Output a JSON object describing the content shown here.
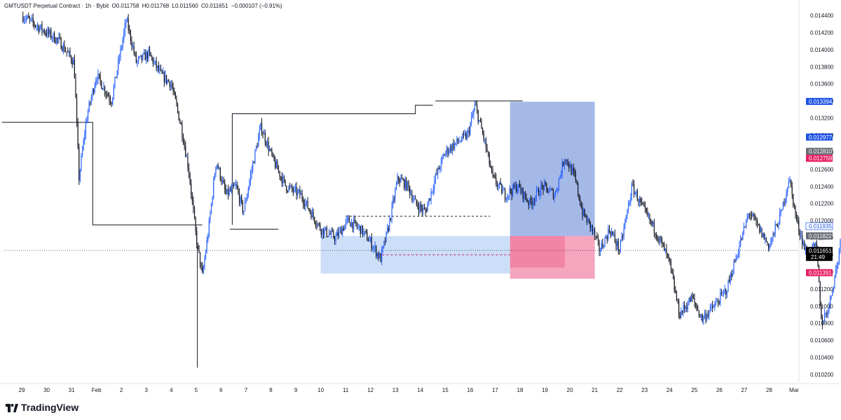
{
  "header": {
    "symbol": "GMTUSDT Perpetual Contract · 1h · Bybit",
    "open": "O0.011758",
    "high": "H0.011768",
    "low": "L0.011560",
    "close": "C0.011651",
    "change": "−0.000107 (−0.91%)"
  },
  "branding": {
    "logo_text": "TradingView"
  },
  "chart_data": {
    "type": "candlestick",
    "symbol": "GMTUSDT Perpetual Contract",
    "exchange": "Bybit",
    "ylim": [
      0.0102,
      0.0144
    ],
    "y_ticks": [
      "0.014400",
      "0.014200",
      "0.014000",
      "0.013800",
      "0.013600",
      "0.013400",
      "0.013200",
      "0.013000",
      "0.012800",
      "0.012600",
      "0.012400",
      "0.012200",
      "0.012000",
      "0.011800",
      "0.011600",
      "0.011400",
      "0.011200",
      "0.011000",
      "0.010800",
      "0.010600",
      "0.010400",
      "0.010200"
    ],
    "x_ticks": [
      "29",
      "30",
      "31",
      "Feb",
      "2",
      "3",
      "4",
      "5",
      "6",
      "7",
      "8",
      "9",
      "10",
      "11",
      "12",
      "13",
      "14",
      "15",
      "16",
      "17",
      "18",
      "19",
      "20",
      "21",
      "22",
      "23",
      "24",
      "25",
      "26",
      "27",
      "28",
      "Mar"
    ],
    "price_labels": [
      {
        "text": "0.013394",
        "value": 0.013394,
        "style": "blue-outline"
      },
      {
        "text": "0.012977",
        "value": 0.012977,
        "style": "blue"
      },
      {
        "text": "0.012810",
        "value": 0.01281,
        "style": "gray"
      },
      {
        "text": "0.012759",
        "value": 0.012759,
        "style": "pink"
      },
      {
        "text": "0.011935",
        "value": 0.011935,
        "style": "light-outline"
      },
      {
        "text": "0.011822",
        "value": 0.011822,
        "style": "gray"
      },
      {
        "text": "0.011651",
        "value": 0.011651,
        "style": "black"
      },
      {
        "text": "0.011391",
        "value": 0.011391,
        "style": "pink"
      }
    ],
    "countdown": "21:49",
    "price_path": [
      [
        0,
        0.0144
      ],
      [
        1.5,
        0.0141
      ],
      [
        2.1,
        0.01385
      ],
      [
        2.3,
        0.0125
      ],
      [
        2.6,
        0.0132
      ],
      [
        3.0,
        0.0137
      ],
      [
        3.6,
        0.0134
      ],
      [
        4.2,
        0.01435
      ],
      [
        4.6,
        0.01385
      ],
      [
        5.1,
        0.01395
      ],
      [
        5.6,
        0.0137
      ],
      [
        6.0,
        0.0136
      ],
      [
        6.4,
        0.0131
      ],
      [
        6.7,
        0.0126
      ],
      [
        7.0,
        0.0118
      ],
      [
        7.25,
        0.01135
      ],
      [
        7.5,
        0.0119
      ],
      [
        7.8,
        0.0127
      ],
      [
        8.2,
        0.0123
      ],
      [
        8.6,
        0.0124
      ],
      [
        8.9,
        0.0121
      ],
      [
        9.3,
        0.0127
      ],
      [
        9.6,
        0.0131
      ],
      [
        10.1,
        0.0127
      ],
      [
        10.6,
        0.0124
      ],
      [
        11.2,
        0.0123
      ],
      [
        11.6,
        0.0121
      ],
      [
        12.0,
        0.0119
      ],
      [
        12.3,
        0.01185
      ],
      [
        12.6,
        0.0118
      ],
      [
        13.1,
        0.012
      ],
      [
        13.6,
        0.0119
      ],
      [
        14.0,
        0.01175
      ],
      [
        14.4,
        0.01155
      ],
      [
        14.7,
        0.0119
      ],
      [
        15.1,
        0.0125
      ],
      [
        15.5,
        0.0124
      ],
      [
        15.8,
        0.0122
      ],
      [
        16.2,
        0.0121
      ],
      [
        16.6,
        0.0125
      ],
      [
        17.0,
        0.0128
      ],
      [
        17.4,
        0.0129
      ],
      [
        17.9,
        0.013
      ],
      [
        18.2,
        0.01335
      ],
      [
        18.6,
        0.0129
      ],
      [
        18.9,
        0.0125
      ],
      [
        19.4,
        0.0123
      ],
      [
        19.9,
        0.0124
      ],
      [
        20.4,
        0.0122
      ],
      [
        20.9,
        0.0124
      ],
      [
        21.4,
        0.0123
      ],
      [
        21.8,
        0.01275
      ],
      [
        22.2,
        0.0125
      ],
      [
        22.5,
        0.0121
      ],
      [
        22.9,
        0.0119
      ],
      [
        23.2,
        0.01165
      ],
      [
        23.6,
        0.0119
      ],
      [
        24.0,
        0.01165
      ],
      [
        24.5,
        0.0124
      ],
      [
        25.0,
        0.0121
      ],
      [
        25.4,
        0.0119
      ],
      [
        25.8,
        0.01165
      ],
      [
        26.0,
        0.0115
      ],
      [
        26.4,
        0.0109
      ],
      [
        26.9,
        0.0111
      ],
      [
        27.3,
        0.01085
      ],
      [
        27.8,
        0.011
      ],
      [
        28.3,
        0.0112
      ],
      [
        28.7,
        0.0116
      ],
      [
        29.2,
        0.0121
      ],
      [
        29.6,
        0.0119
      ],
      [
        30.0,
        0.0117
      ],
      [
        30.5,
        0.0121
      ],
      [
        30.8,
        0.0125
      ],
      [
        31.1,
        0.012
      ],
      [
        31.5,
        0.0116
      ],
      [
        31.9,
        0.0117
      ],
      [
        32.1,
        0.0108
      ],
      [
        32.4,
        0.011
      ],
      [
        32.8,
        0.0116
      ],
      [
        33.0,
        0.0122
      ],
      [
        33.4,
        0.01175
      ]
    ],
    "wick_low": {
      "x": 7.05,
      "value": 0.01028
    },
    "structure_lines": [
      {
        "points": [
          [
            -0.8,
            0.01315
          ],
          [
            2.85,
            0.01315
          ],
          [
            2.85,
            0.01195
          ],
          [
            7.25,
            0.01195
          ]
        ]
      },
      {
        "points": [
          [
            8.45,
            0.01195
          ],
          [
            8.45,
            0.01318
          ],
          [
            8.45,
            0.01325
          ],
          [
            15.8,
            0.01325
          ],
          [
            15.8,
            0.01335
          ],
          [
            16.5,
            0.01335
          ]
        ]
      },
      {
        "points": [
          [
            8.35,
            0.0119
          ],
          [
            10.3,
            0.0119
          ]
        ]
      },
      {
        "points": [
          [
            16.6,
            0.0134
          ],
          [
            20.1,
            0.0134
          ]
        ]
      }
    ],
    "dashed_levels": [
      {
        "x": [
          13.0,
          18.8
        ],
        "value": 0.01205
      },
      {
        "x": [
          14.3,
          19.6
        ],
        "value": 0.0116
      }
    ],
    "zones": [
      {
        "kind": "demand",
        "x": [
          12.0,
          19.6
        ],
        "y": [
          0.01138,
          0.01182
        ],
        "color": "#90b8f0"
      },
      {
        "kind": "target",
        "x": [
          19.6,
          23.0
        ],
        "y": [
          0.01182,
          0.01339
        ],
        "color": "#5b7fd6"
      },
      {
        "kind": "stop",
        "x": [
          19.6,
          23.0
        ],
        "y": [
          0.01132,
          0.01182
        ],
        "color": "#f27fa3"
      }
    ],
    "current_price": 0.011651
  }
}
